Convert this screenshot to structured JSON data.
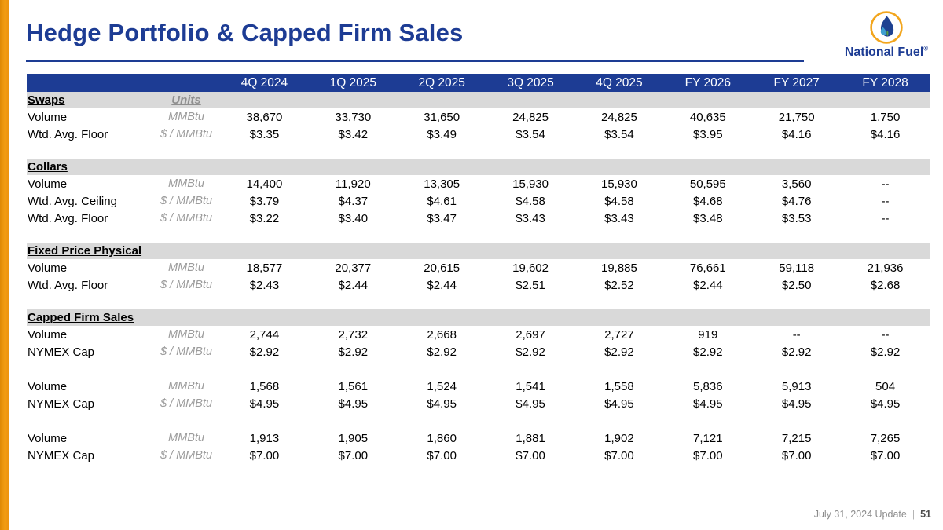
{
  "header": {
    "title": "Hedge Portfolio & Capped Firm Sales",
    "logo_text": "National Fuel",
    "logo_reg": "®"
  },
  "colors": {
    "brand_blue": "#1d3c94",
    "accent_orange": "#ee9310",
    "band_gray": "#d9d9d9",
    "units_gray": "#9c9c9c",
    "logo_ring_orange": "#f2a51c",
    "logo_flame_blue": "#1e4191",
    "logo_drop_light_blue": "#3f9fd0",
    "logo_leaf_green": "#56a046"
  },
  "table": {
    "units_header": "Units",
    "columns": [
      "4Q 2024",
      "1Q 2025",
      "2Q 2025",
      "3Q 2025",
      "4Q 2025",
      "FY 2026",
      "FY 2027",
      "FY 2028"
    ],
    "sections": [
      {
        "name": "Swaps",
        "show_units_header": true,
        "rows": [
          {
            "label": "Volume",
            "units": "MMBtu",
            "values": [
              "38,670",
              "33,730",
              "31,650",
              "24,825",
              "24,825",
              "40,635",
              "21,750",
              "1,750"
            ]
          },
          {
            "label": "Wtd. Avg. Floor",
            "units": "$ / MMBtu",
            "values": [
              "$3.35",
              "$3.42",
              "$3.49",
              "$3.54",
              "$3.54",
              "$3.95",
              "$4.16",
              "$4.16"
            ]
          }
        ]
      },
      {
        "name": "Collars",
        "show_units_header": false,
        "rows": [
          {
            "label": "Volume",
            "units": "MMBtu",
            "values": [
              "14,400",
              "11,920",
              "13,305",
              "15,930",
              "15,930",
              "50,595",
              "3,560",
              "--"
            ]
          },
          {
            "label": "Wtd. Avg. Ceiling",
            "units": "$ / MMBtu",
            "values": [
              "$3.79",
              "$4.37",
              "$4.61",
              "$4.58",
              "$4.58",
              "$4.68",
              "$4.76",
              "--"
            ]
          },
          {
            "label": "Wtd. Avg. Floor",
            "units": "$ / MMBtu",
            "values": [
              "$3.22",
              "$3.40",
              "$3.47",
              "$3.43",
              "$3.43",
              "$3.48",
              "$3.53",
              "--"
            ]
          }
        ]
      },
      {
        "name": "Fixed Price Physical",
        "show_units_header": false,
        "rows": [
          {
            "label": "Volume",
            "units": "MMBtu",
            "values": [
              "18,577",
              "20,377",
              "20,615",
              "19,602",
              "19,885",
              "76,661",
              "59,118",
              "21,936"
            ]
          },
          {
            "label": "Wtd. Avg. Floor",
            "units": "$ / MMBtu",
            "values": [
              "$2.43",
              "$2.44",
              "$2.44",
              "$2.51",
              "$2.52",
              "$2.44",
              "$2.50",
              "$2.68"
            ]
          }
        ]
      },
      {
        "name": "Capped Firm Sales",
        "show_units_header": false,
        "rows": [
          {
            "label": "Volume",
            "units": "MMBtu",
            "values": [
              "2,744",
              "2,732",
              "2,668",
              "2,697",
              "2,727",
              "919",
              "--",
              "--"
            ]
          },
          {
            "label": "NYMEX Cap",
            "units": "$ / MMBtu",
            "values": [
              "$2.92",
              "$2.92",
              "$2.92",
              "$2.92",
              "$2.92",
              "$2.92",
              "$2.92",
              "$2.92"
            ]
          },
          {
            "spacer": true
          },
          {
            "label": "Volume",
            "units": "MMBtu",
            "values": [
              "1,568",
              "1,561",
              "1,524",
              "1,541",
              "1,558",
              "5,836",
              "5,913",
              "504"
            ]
          },
          {
            "label": "NYMEX Cap",
            "units": "$ / MMBtu",
            "values": [
              "$4.95",
              "$4.95",
              "$4.95",
              "$4.95",
              "$4.95",
              "$4.95",
              "$4.95",
              "$4.95"
            ]
          },
          {
            "spacer": true
          },
          {
            "label": "Volume",
            "units": "MMBtu",
            "values": [
              "1,913",
              "1,905",
              "1,860",
              "1,881",
              "1,902",
              "7,121",
              "7,215",
              "7,265"
            ]
          },
          {
            "label": "NYMEX Cap",
            "units": "$ / MMBtu",
            "values": [
              "$7.00",
              "$7.00",
              "$7.00",
              "$7.00",
              "$7.00",
              "$7.00",
              "$7.00",
              "$7.00"
            ]
          }
        ]
      }
    ]
  },
  "footer": {
    "update_text": "July 31, 2024 Update",
    "divider": "|",
    "page_number": "51"
  }
}
